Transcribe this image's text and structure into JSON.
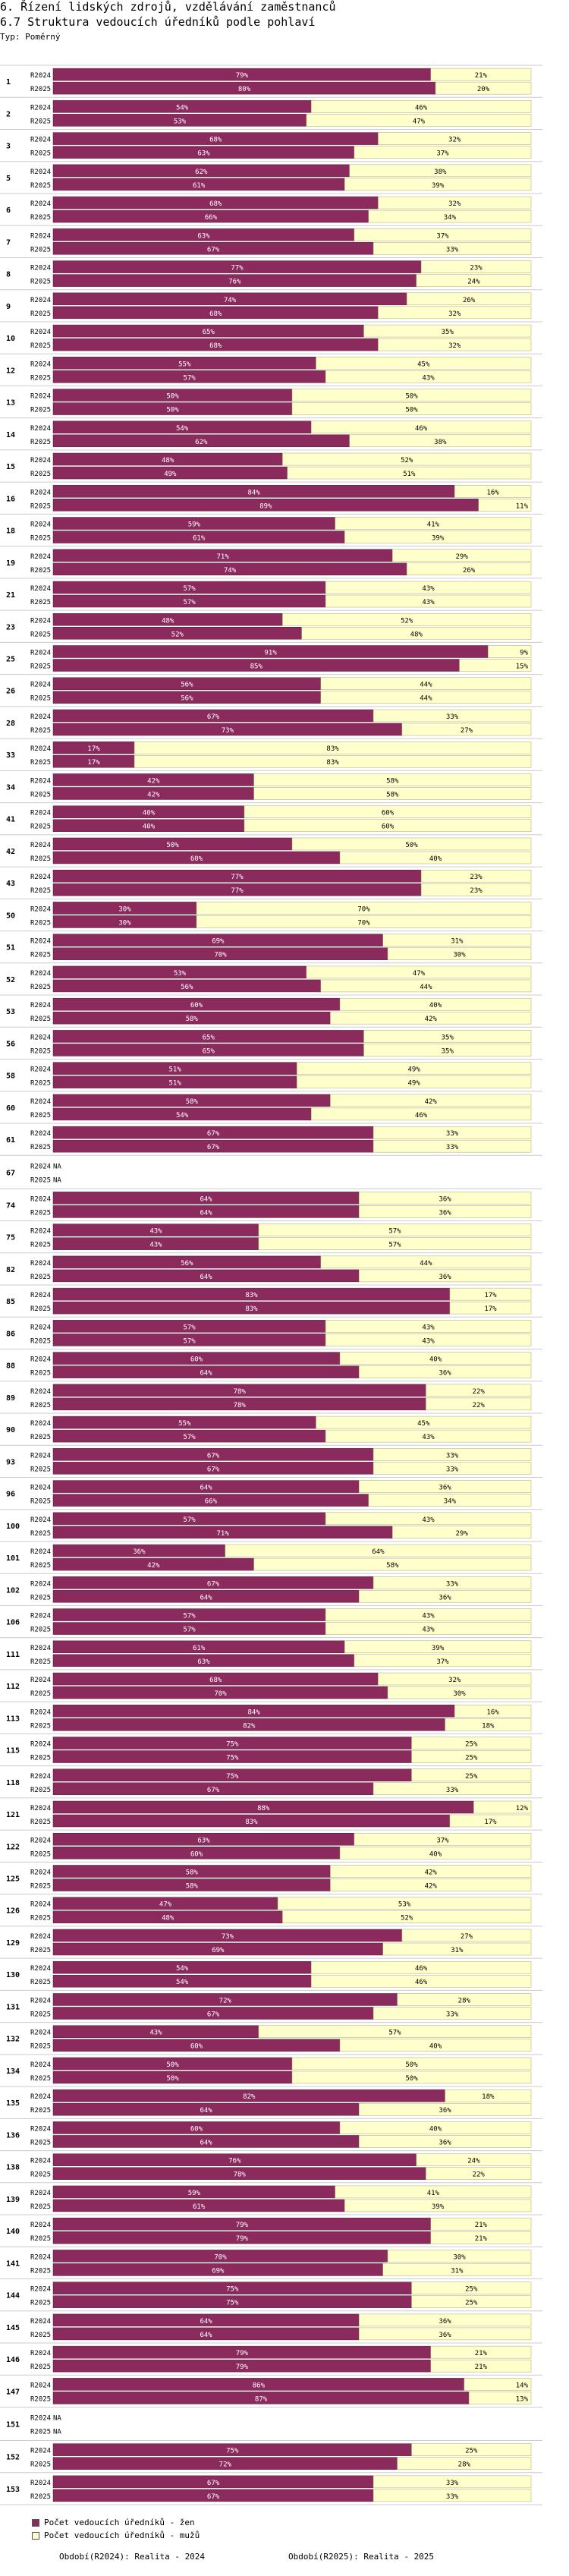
{
  "header": {
    "title_line1": "6. Řízení lidských zdrojů, vzdělávání zaměstnanců",
    "title_line2": "6.7 Struktura vedoucích úředníků podle pohlaví",
    "subtitle": "Typ: Poměrný"
  },
  "legend": {
    "women": "Počet vedoucích úředníků - žen",
    "men": "Počet vedoucích úředníků - mužů"
  },
  "footer": {
    "period_2024": "Období(R2024): Realita - 2024",
    "period_2025": "Období(R2025): Realita - 2025"
  },
  "colors": {
    "women": "#8b2a5c",
    "men": "#ffffcc",
    "women_text": "#ffffff",
    "men_text": "#000000",
    "grid": "#cccccc"
  },
  "chart_data": {
    "type": "bar",
    "orientation": "horizontal-stacked-100",
    "series_names": [
      "Počet vedoucích úředníků - žen",
      "Počet vedoucích úředníků - mužů"
    ],
    "year_labels": [
      "R2024",
      "R2025"
    ],
    "unit": "%",
    "groups": [
      {
        "id": "1",
        "women": [
          79,
          80
        ],
        "men": [
          21,
          20
        ]
      },
      {
        "id": "2",
        "women": [
          54,
          53
        ],
        "men": [
          46,
          47
        ]
      },
      {
        "id": "3",
        "women": [
          68,
          63
        ],
        "men": [
          32,
          37
        ]
      },
      {
        "id": "5",
        "women": [
          62,
          61
        ],
        "men": [
          38,
          39
        ]
      },
      {
        "id": "6",
        "women": [
          68,
          66
        ],
        "men": [
          32,
          34
        ]
      },
      {
        "id": "7",
        "women": [
          63,
          67
        ],
        "men": [
          37,
          33
        ]
      },
      {
        "id": "8",
        "women": [
          77,
          76
        ],
        "men": [
          23,
          24
        ]
      },
      {
        "id": "9",
        "women": [
          74,
          68
        ],
        "men": [
          26,
          32
        ]
      },
      {
        "id": "10",
        "women": [
          65,
          68
        ],
        "men": [
          35,
          32
        ]
      },
      {
        "id": "12",
        "women": [
          55,
          57
        ],
        "men": [
          45,
          43
        ]
      },
      {
        "id": "13",
        "women": [
          50,
          50
        ],
        "men": [
          50,
          50
        ]
      },
      {
        "id": "14",
        "women": [
          54,
          62
        ],
        "men": [
          46,
          38
        ]
      },
      {
        "id": "15",
        "women": [
          48,
          49
        ],
        "men": [
          52,
          51
        ]
      },
      {
        "id": "16",
        "women": [
          84,
          89
        ],
        "men": [
          16,
          11
        ]
      },
      {
        "id": "18",
        "women": [
          59,
          61
        ],
        "men": [
          41,
          39
        ]
      },
      {
        "id": "19",
        "women": [
          71,
          74
        ],
        "men": [
          29,
          26
        ]
      },
      {
        "id": "21",
        "women": [
          57,
          57
        ],
        "men": [
          43,
          43
        ]
      },
      {
        "id": "23",
        "women": [
          48,
          52
        ],
        "men": [
          52,
          48
        ]
      },
      {
        "id": "25",
        "women": [
          91,
          85
        ],
        "men": [
          9,
          15
        ]
      },
      {
        "id": "26",
        "women": [
          56,
          56
        ],
        "men": [
          44,
          44
        ]
      },
      {
        "id": "28",
        "women": [
          67,
          73
        ],
        "men": [
          33,
          27
        ]
      },
      {
        "id": "33",
        "women": [
          17,
          17
        ],
        "men": [
          83,
          83
        ]
      },
      {
        "id": "34",
        "women": [
          42,
          42
        ],
        "men": [
          58,
          58
        ]
      },
      {
        "id": "41",
        "women": [
          40,
          40
        ],
        "men": [
          60,
          60
        ]
      },
      {
        "id": "42",
        "women": [
          50,
          60
        ],
        "men": [
          50,
          40
        ]
      },
      {
        "id": "43",
        "women": [
          77,
          77
        ],
        "men": [
          23,
          23
        ]
      },
      {
        "id": "50",
        "women": [
          30,
          30
        ],
        "men": [
          70,
          70
        ]
      },
      {
        "id": "51",
        "women": [
          69,
          70
        ],
        "men": [
          31,
          30
        ]
      },
      {
        "id": "52",
        "women": [
          53,
          56
        ],
        "men": [
          47,
          44
        ]
      },
      {
        "id": "53",
        "women": [
          60,
          58
        ],
        "men": [
          40,
          42
        ]
      },
      {
        "id": "56",
        "women": [
          65,
          65
        ],
        "men": [
          35,
          35
        ]
      },
      {
        "id": "58",
        "women": [
          51,
          51
        ],
        "men": [
          49,
          49
        ]
      },
      {
        "id": "60",
        "women": [
          58,
          54
        ],
        "men": [
          42,
          46
        ]
      },
      {
        "id": "61",
        "women": [
          67,
          67
        ],
        "men": [
          33,
          33
        ]
      },
      {
        "id": "67",
        "women": [
          null,
          null
        ],
        "men": [
          null,
          null
        ],
        "na": true
      },
      {
        "id": "74",
        "women": [
          64,
          64
        ],
        "men": [
          36,
          36
        ]
      },
      {
        "id": "75",
        "women": [
          43,
          43
        ],
        "men": [
          57,
          57
        ]
      },
      {
        "id": "82",
        "women": [
          56,
          64
        ],
        "men": [
          44,
          36
        ]
      },
      {
        "id": "85",
        "women": [
          83,
          83
        ],
        "men": [
          17,
          17
        ]
      },
      {
        "id": "86",
        "women": [
          57,
          57
        ],
        "men": [
          43,
          43
        ]
      },
      {
        "id": "88",
        "women": [
          60,
          64
        ],
        "men": [
          40,
          36
        ]
      },
      {
        "id": "89",
        "women": [
          78,
          78
        ],
        "men": [
          22,
          22
        ]
      },
      {
        "id": "90",
        "women": [
          55,
          57
        ],
        "men": [
          45,
          43
        ]
      },
      {
        "id": "93",
        "women": [
          67,
          67
        ],
        "men": [
          33,
          33
        ]
      },
      {
        "id": "96",
        "women": [
          64,
          66
        ],
        "men": [
          36,
          34
        ]
      },
      {
        "id": "100",
        "women": [
          57,
          71
        ],
        "men": [
          43,
          29
        ]
      },
      {
        "id": "101",
        "women": [
          36,
          42
        ],
        "men": [
          64,
          58
        ]
      },
      {
        "id": "102",
        "women": [
          67,
          64
        ],
        "men": [
          33,
          36
        ]
      },
      {
        "id": "106",
        "women": [
          57,
          57
        ],
        "men": [
          43,
          43
        ]
      },
      {
        "id": "111",
        "women": [
          61,
          63
        ],
        "men": [
          39,
          37
        ]
      },
      {
        "id": "112",
        "women": [
          68,
          70
        ],
        "men": [
          32,
          30
        ]
      },
      {
        "id": "113",
        "women": [
          84,
          82
        ],
        "men": [
          16,
          18
        ]
      },
      {
        "id": "115",
        "women": [
          75,
          75
        ],
        "men": [
          25,
          25
        ]
      },
      {
        "id": "118",
        "women": [
          75,
          67
        ],
        "men": [
          25,
          33
        ]
      },
      {
        "id": "121",
        "women": [
          88,
          83
        ],
        "men": [
          12,
          17
        ]
      },
      {
        "id": "122",
        "women": [
          63,
          60
        ],
        "men": [
          37,
          40
        ]
      },
      {
        "id": "125",
        "women": [
          58,
          58
        ],
        "men": [
          42,
          42
        ]
      },
      {
        "id": "126",
        "women": [
          47,
          48
        ],
        "men": [
          53,
          52
        ]
      },
      {
        "id": "129",
        "women": [
          73,
          69
        ],
        "men": [
          27,
          31
        ]
      },
      {
        "id": "130",
        "women": [
          54,
          54
        ],
        "men": [
          46,
          46
        ]
      },
      {
        "id": "131",
        "women": [
          72,
          67
        ],
        "men": [
          28,
          33
        ]
      },
      {
        "id": "132",
        "women": [
          43,
          60
        ],
        "men": [
          57,
          40
        ]
      },
      {
        "id": "134",
        "women": [
          50,
          50
        ],
        "men": [
          50,
          50
        ]
      },
      {
        "id": "135",
        "women": [
          82,
          64
        ],
        "men": [
          18,
          36
        ]
      },
      {
        "id": "136",
        "women": [
          60,
          64
        ],
        "men": [
          40,
          36
        ]
      },
      {
        "id": "138",
        "women": [
          76,
          78
        ],
        "men": [
          24,
          22
        ]
      },
      {
        "id": "139",
        "women": [
          59,
          61
        ],
        "men": [
          41,
          39
        ]
      },
      {
        "id": "140",
        "women": [
          79,
          79
        ],
        "men": [
          21,
          21
        ]
      },
      {
        "id": "141",
        "women": [
          70,
          69
        ],
        "men": [
          30,
          31
        ]
      },
      {
        "id": "144",
        "women": [
          75,
          75
        ],
        "men": [
          25,
          25
        ]
      },
      {
        "id": "145",
        "women": [
          64,
          64
        ],
        "men": [
          36,
          36
        ]
      },
      {
        "id": "146",
        "women": [
          79,
          79
        ],
        "men": [
          21,
          21
        ]
      },
      {
        "id": "147",
        "women": [
          86,
          87
        ],
        "men": [
          14,
          13
        ]
      },
      {
        "id": "151",
        "women": [
          null,
          null
        ],
        "men": [
          null,
          null
        ],
        "na": true
      },
      {
        "id": "152",
        "women": [
          75,
          72
        ],
        "men": [
          25,
          28
        ]
      },
      {
        "id": "153",
        "women": [
          67,
          67
        ],
        "men": [
          33,
          33
        ]
      }
    ],
    "na_label": "NA",
    "pct_suffix": "%"
  }
}
